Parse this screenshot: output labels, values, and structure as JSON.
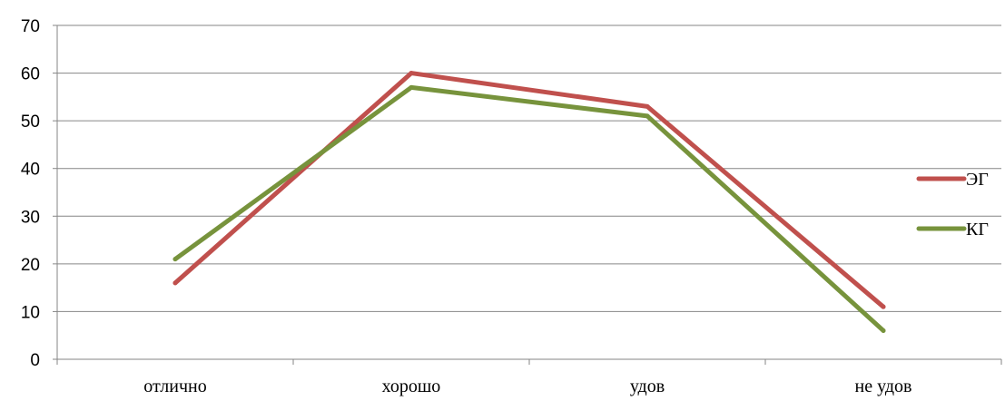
{
  "chart_data": {
    "type": "line",
    "categories": [
      "отлично",
      "хорошо",
      "удов",
      "не удов"
    ],
    "series": [
      {
        "name": "ЭГ",
        "values": [
          16,
          60,
          53,
          11
        ],
        "color": "#c0504d"
      },
      {
        "name": "КГ",
        "values": [
          21,
          57,
          51,
          6
        ],
        "color": "#77933c"
      }
    ],
    "ylim": [
      0,
      70
    ],
    "yticks": [
      "0",
      "10",
      "20",
      "30",
      "40",
      "50",
      "60",
      "70"
    ],
    "grid": true,
    "legend": "right"
  }
}
